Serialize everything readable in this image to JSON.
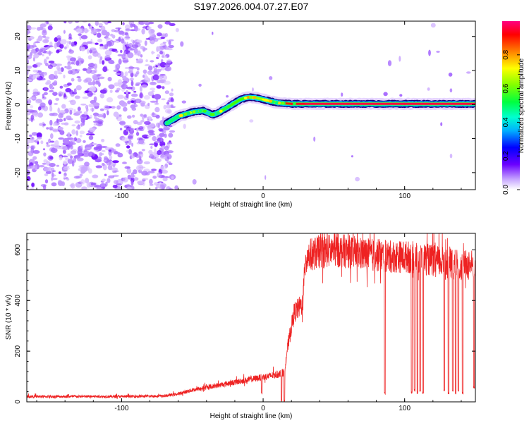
{
  "page_title": "S197.2026.004.07.27.E07",
  "chart_data": [
    {
      "type": "heatmap",
      "title": "S197.2026.004.07.27.E07",
      "xlabel": "Height of straight line (km)",
      "ylabel": "Frequency (Hz)",
      "xlim": [
        -167,
        150
      ],
      "ylim": [
        -25,
        24.5
      ],
      "xticks": [
        -100,
        0,
        100
      ],
      "yticks": [
        -20,
        -10,
        0,
        10,
        20
      ],
      "colorbar": {
        "label": "Normalized spectral amplitude",
        "range": [
          0.0,
          1.0
        ],
        "ticks": [
          0.0,
          0.2,
          0.4,
          0.6,
          0.8
        ],
        "tick_labels": [
          "0.0",
          "0.2",
          "0.4",
          "0.6",
          "0.8"
        ],
        "colormap": [
          "#ffffff",
          "#a060ff",
          "#6a00ff",
          "#0000ff",
          "#00d0ff",
          "#00ff80",
          "#40ff00",
          "#ffff00",
          "#ff8000",
          "#ff0000",
          "#ff0080"
        ]
      },
      "noise_region_x": [
        -167,
        -68
      ],
      "trace": {
        "x": [
          -68,
          -60,
          -50,
          -42,
          -36,
          -32,
          -28,
          -22,
          -16,
          -10,
          -5,
          0,
          5,
          10,
          20,
          30,
          60,
          100,
          150
        ],
        "freq": [
          -5.5,
          -3.5,
          -2.2,
          -1.8,
          -3.0,
          -2.5,
          -1.5,
          0.0,
          1.5,
          2.2,
          2.0,
          1.5,
          1.0,
          0.5,
          0.2,
          0.2,
          0.2,
          0.2,
          0.2
        ],
        "amplitude": [
          0.5,
          0.5,
          0.5,
          0.45,
          0.4,
          0.5,
          0.55,
          0.6,
          0.6,
          0.6,
          0.65,
          0.65,
          0.75,
          0.85,
          0.9,
          0.95,
          0.95,
          0.95,
          0.95
        ]
      }
    },
    {
      "type": "line",
      "title": "",
      "xlabel": "Height of straight line (km)",
      "ylabel": "SNR (10 * v/v)",
      "xlim": [
        -167,
        150
      ],
      "ylim": [
        0,
        665
      ],
      "xticks": [
        -100,
        0,
        100
      ],
      "yticks": [
        0,
        200,
        400,
        600
      ],
      "series": [
        {
          "name": "SNR",
          "color": "#ee2222",
          "envelope_x": [
            -167,
            -140,
            -100,
            -70,
            -60,
            -50,
            -40,
            -30,
            -20,
            -10,
            0,
            10,
            15,
            17,
            20,
            22,
            25,
            28,
            30,
            40,
            50,
            60,
            70,
            80,
            90,
            100,
            110,
            120,
            130,
            140,
            150
          ],
          "envelope_y": [
            20,
            20,
            20,
            22,
            30,
            45,
            55,
            65,
            75,
            85,
            95,
            105,
            115,
            200,
            290,
            345,
            360,
            380,
            560,
            580,
            585,
            580,
            570,
            565,
            560,
            560,
            555,
            545,
            535,
            525,
            530
          ],
          "dips_x": [
            -1,
            13,
            15,
            86,
            105,
            107,
            109,
            111,
            113,
            128,
            131,
            134,
            136,
            138,
            141,
            149
          ],
          "dips_y": [
            30,
            0,
            0,
            30,
            30,
            40,
            30,
            40,
            30,
            40,
            30,
            40,
            30,
            40,
            30,
            50
          ]
        }
      ]
    }
  ]
}
